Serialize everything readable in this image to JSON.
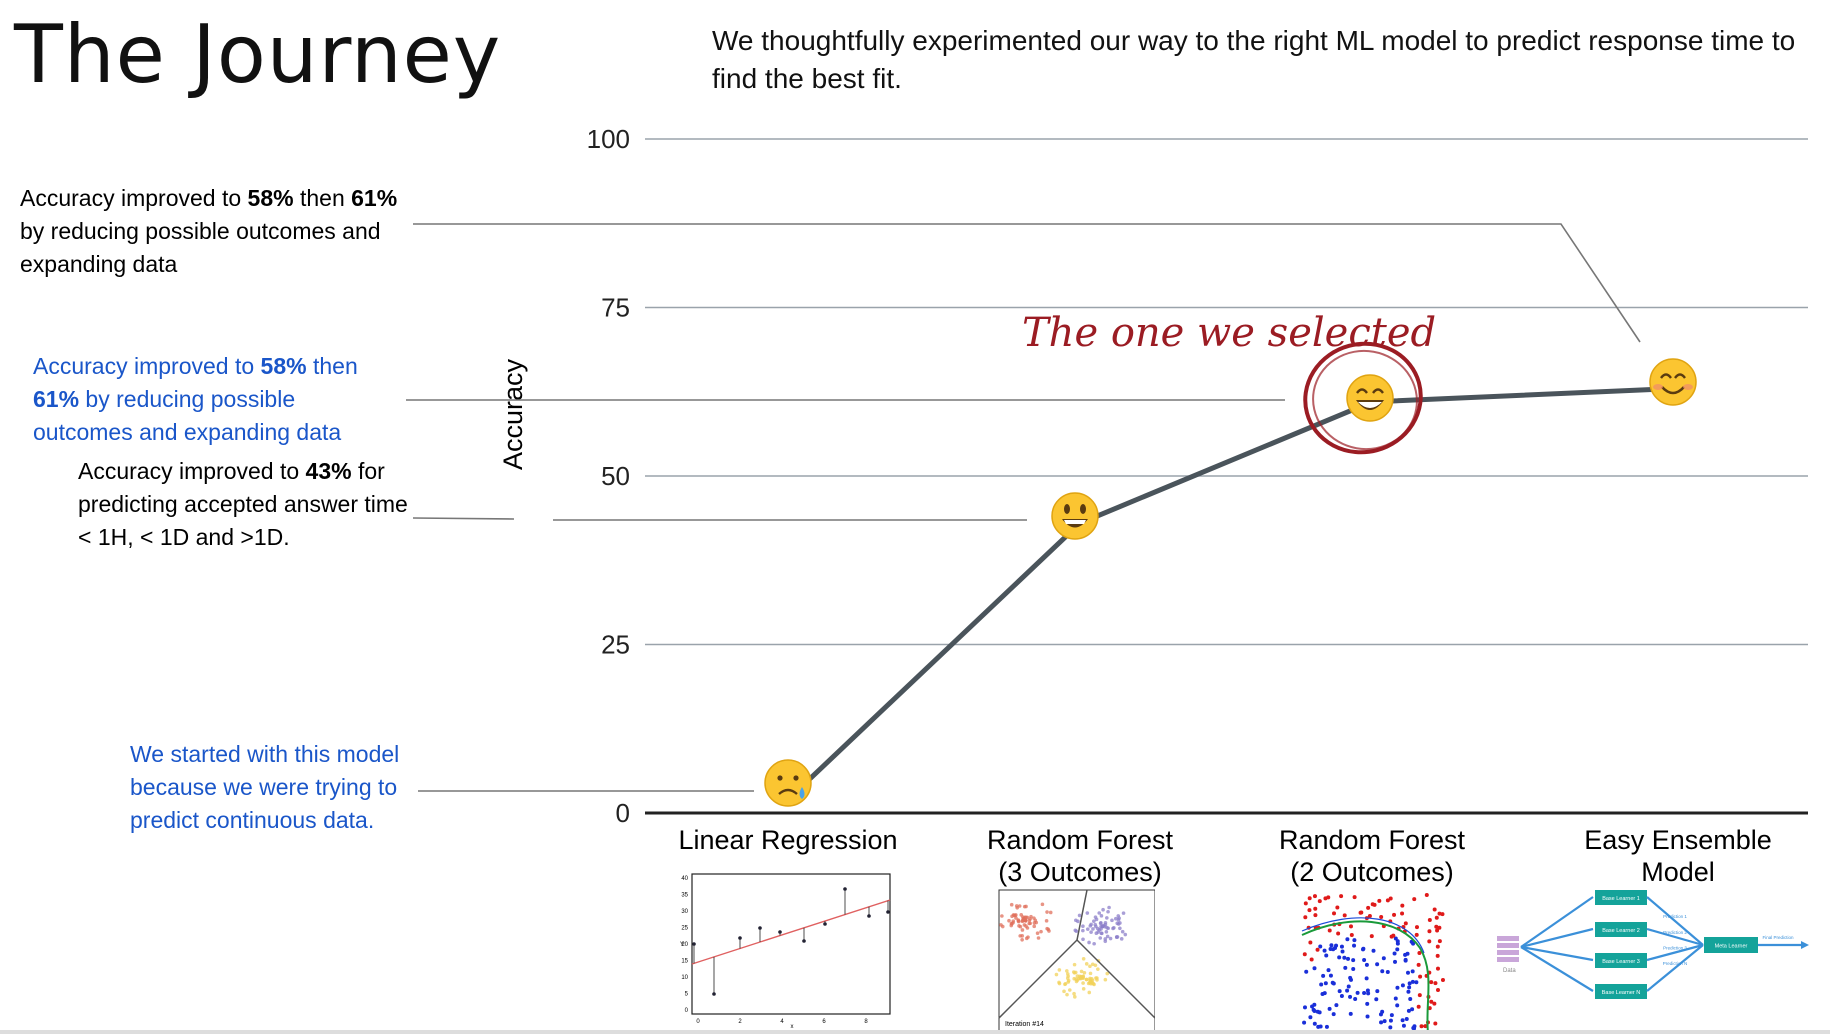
{
  "page": {
    "title": "The Journey",
    "subtitle": "We thoughtfully experimented our way to the right ML model to predict response time to find the best fit."
  },
  "notes": {
    "n1": {
      "pre": "Accuracy improved to ",
      "b1": "58%",
      "mid": " then ",
      "b2": "61%",
      "post": " by reducing possible outcomes and expanding data"
    },
    "n2": {
      "pre": "Accuracy improved to ",
      "b1": "58%",
      "mid": " then ",
      "b2": "61%",
      "post": " by reducing possible outcomes and expanding data"
    },
    "n3": {
      "pre": "Accuracy improved to ",
      "b1": "43%",
      "post": " for predicting accepted answer time < 1H, < 1D and >1D."
    },
    "n4": {
      "text": "We started with this model because we were trying to predict continuous data."
    }
  },
  "annotation": {
    "selected": "The one we selected"
  },
  "colors": {
    "line": "#4a545b",
    "grid": "#9aa3ab",
    "accent_red": "#9b1c23",
    "note_blue": "#1a56c9"
  },
  "chart_data": {
    "type": "line",
    "title": "",
    "xlabel": "",
    "ylabel": "Accuracy",
    "ylim": [
      0,
      100
    ],
    "yticks": [
      0,
      25,
      50,
      75,
      100
    ],
    "grid": true,
    "categories": [
      "Linear Regression",
      "Random Forest\n(3 Outcomes)",
      "Random Forest\n(2 Outcomes)",
      "Easy Ensemble Model"
    ],
    "category_lines": [
      [
        "Linear Regression"
      ],
      [
        "Random Forest",
        "(3 Outcomes)"
      ],
      [
        "Random Forest",
        "(2 Outcomes)"
      ],
      [
        "Easy Ensemble Model"
      ]
    ],
    "values": [
      2,
      43,
      61,
      63
    ],
    "markers": [
      "sad-face-icon",
      "grinning-face-icon",
      "beaming-face-icon",
      "smiling-face-icon"
    ]
  },
  "thumbnails": {
    "linear": {
      "yticks": [
        "40",
        "35",
        "30",
        "25",
        "20",
        "15",
        "10",
        "5",
        "0"
      ],
      "xticks": [
        "0",
        "2",
        "4",
        "6",
        "8"
      ],
      "xlabel": "x",
      "ylabel": "Y"
    },
    "rf3": {
      "caption": "Iteration #14"
    },
    "ensemble": {
      "learners": [
        "Base Learner 1",
        "Base Learner 2",
        "Base Learner 3",
        "Base Learner N"
      ],
      "predictions": [
        "Prediction 1",
        "Prediction 2",
        "Prediction 3",
        "Prediction N"
      ],
      "meta": "Meta Learner",
      "final": "Final Prediction",
      "data": "Data"
    }
  }
}
